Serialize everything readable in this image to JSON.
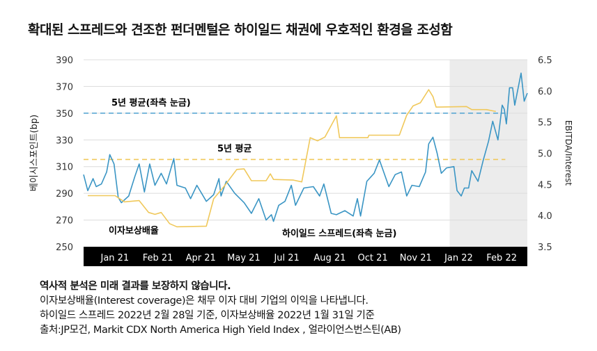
{
  "title": "확대된 스프레드와 견조한 펀더멘털은 하이일드 채권에 우호적인 환경을 조성함",
  "chart_data": {
    "type": "line",
    "ylabel_left": "베이시스포인트(bp)",
    "ylabel_right": "EBITDA/Interest",
    "ylim_left": [
      250,
      390
    ],
    "yticks_left": [
      250,
      270,
      290,
      310,
      330,
      350,
      370,
      390
    ],
    "ylim_right": [
      3.5,
      6.5
    ],
    "yticks_right": [
      "3.5",
      "4.0",
      "4.5",
      "5.0",
      "5.5",
      "6.0",
      "6.5"
    ],
    "xlim": [
      "2021-01-01",
      "2022-02-28"
    ],
    "xtick_labels": [
      "Jan 21",
      "Feb 21",
      "Apr 21",
      "May 21",
      "Jul 21",
      "Aug 21",
      "Oct 21",
      "Nov 21",
      "Jan 22",
      "Feb 22"
    ],
    "grid": "horizontal",
    "shaded_from": "2021-12-16",
    "shaded_color": "#ececec",
    "series": [
      {
        "name": "하이일드 스프레드(좌측 눈금)",
        "axis": "left",
        "color": "#3a95c4",
        "points": [
          [
            "2021-01-01",
            304
          ],
          [
            "2021-01-05",
            292
          ],
          [
            "2021-01-10",
            301
          ],
          [
            "2021-01-13",
            295
          ],
          [
            "2021-01-18",
            297
          ],
          [
            "2021-01-23",
            306
          ],
          [
            "2021-01-26",
            319
          ],
          [
            "2021-01-30",
            312
          ],
          [
            "2021-02-03",
            287
          ],
          [
            "2021-02-06",
            283
          ],
          [
            "2021-02-13",
            288
          ],
          [
            "2021-02-19",
            303
          ],
          [
            "2021-02-23",
            312
          ],
          [
            "2021-02-28",
            291
          ],
          [
            "2021-03-05",
            312
          ],
          [
            "2021-03-10",
            296
          ],
          [
            "2021-03-16",
            305
          ],
          [
            "2021-03-21",
            297
          ],
          [
            "2021-03-28",
            316
          ],
          [
            "2021-03-31",
            296
          ],
          [
            "2021-04-08",
            294
          ],
          [
            "2021-04-13",
            286
          ],
          [
            "2021-04-19",
            296
          ],
          [
            "2021-04-28",
            284
          ],
          [
            "2021-05-05",
            289
          ],
          [
            "2021-05-10",
            301
          ],
          [
            "2021-05-12",
            288
          ],
          [
            "2021-05-17",
            299
          ],
          [
            "2021-05-25",
            290
          ],
          [
            "2021-06-03",
            283
          ],
          [
            "2021-06-10",
            275
          ],
          [
            "2021-06-17",
            286
          ],
          [
            "2021-06-24",
            270
          ],
          [
            "2021-06-29",
            274
          ],
          [
            "2021-07-01",
            269
          ],
          [
            "2021-07-06",
            281
          ],
          [
            "2021-07-12",
            284
          ],
          [
            "2021-07-18",
            296
          ],
          [
            "2021-07-22",
            281
          ],
          [
            "2021-07-30",
            294
          ],
          [
            "2021-08-08",
            295
          ],
          [
            "2021-08-14",
            288
          ],
          [
            "2021-08-18",
            297
          ],
          [
            "2021-08-25",
            275
          ],
          [
            "2021-08-30",
            274
          ],
          [
            "2021-09-07",
            277
          ],
          [
            "2021-09-15",
            273
          ],
          [
            "2021-09-19",
            286
          ],
          [
            "2021-09-22",
            273
          ],
          [
            "2021-09-28",
            299
          ],
          [
            "2021-10-05",
            305
          ],
          [
            "2021-10-10",
            315
          ],
          [
            "2021-10-19",
            295
          ],
          [
            "2021-10-25",
            304
          ],
          [
            "2021-10-31",
            306
          ],
          [
            "2021-11-05",
            288
          ],
          [
            "2021-11-10",
            296
          ],
          [
            "2021-11-17",
            295
          ],
          [
            "2021-11-23",
            306
          ],
          [
            "2021-11-26",
            327
          ],
          [
            "2021-11-30",
            332
          ],
          [
            "2021-12-04",
            320
          ],
          [
            "2021-12-08",
            305
          ],
          [
            "2021-12-13",
            309
          ],
          [
            "2021-12-20",
            310
          ],
          [
            "2021-12-23",
            292
          ],
          [
            "2021-12-27",
            288
          ],
          [
            "2021-12-30",
            294
          ],
          [
            "2022-01-03",
            294
          ],
          [
            "2022-01-06",
            307
          ],
          [
            "2022-01-12",
            299
          ],
          [
            "2022-01-17",
            315
          ],
          [
            "2022-01-22",
            329
          ],
          [
            "2022-01-26",
            344
          ],
          [
            "2022-01-31",
            330
          ],
          [
            "2022-02-04",
            356
          ],
          [
            "2022-02-06",
            353
          ],
          [
            "2022-02-08",
            342
          ],
          [
            "2022-02-11",
            369
          ],
          [
            "2022-02-14",
            369
          ],
          [
            "2022-02-16",
            356
          ],
          [
            "2022-02-22",
            380
          ],
          [
            "2022-02-25",
            359
          ],
          [
            "2022-02-28",
            365
          ]
        ]
      },
      {
        "name": "이자보상배율",
        "axis": "right",
        "color": "#f0c85a",
        "points": [
          [
            "2021-01-05",
            4.32
          ],
          [
            "2021-01-31",
            4.32
          ],
          [
            "2021-02-09",
            4.22
          ],
          [
            "2021-02-23",
            4.24
          ],
          [
            "2021-03-04",
            4.05
          ],
          [
            "2021-03-10",
            4.02
          ],
          [
            "2021-03-16",
            4.05
          ],
          [
            "2021-03-24",
            3.87
          ],
          [
            "2021-03-31",
            3.82
          ],
          [
            "2021-04-28",
            3.83
          ],
          [
            "2021-05-05",
            4.27
          ],
          [
            "2021-05-15",
            4.47
          ],
          [
            "2021-05-27",
            4.74
          ],
          [
            "2021-06-03",
            4.75
          ],
          [
            "2021-06-10",
            4.56
          ],
          [
            "2021-06-24",
            4.56
          ],
          [
            "2021-06-28",
            4.67
          ],
          [
            "2021-07-01",
            4.58
          ],
          [
            "2021-07-20",
            4.57
          ],
          [
            "2021-07-28",
            4.54
          ],
          [
            "2021-08-05",
            5.25
          ],
          [
            "2021-08-12",
            5.2
          ],
          [
            "2021-08-19",
            5.26
          ],
          [
            "2021-08-30",
            5.6
          ],
          [
            "2021-09-02",
            5.25
          ],
          [
            "2021-09-29",
            5.25
          ],
          [
            "2021-09-30",
            5.29
          ],
          [
            "2021-10-29",
            5.29
          ],
          [
            "2021-11-05",
            5.61
          ],
          [
            "2021-11-11",
            5.76
          ],
          [
            "2021-11-18",
            5.81
          ],
          [
            "2021-11-26",
            6.02
          ],
          [
            "2021-11-30",
            5.91
          ],
          [
            "2021-12-03",
            5.74
          ],
          [
            "2022-01-01",
            5.75
          ],
          [
            "2022-01-06",
            5.7
          ],
          [
            "2022-01-20",
            5.7
          ],
          [
            "2022-01-29",
            5.67
          ]
        ]
      }
    ],
    "reference_lines": [
      {
        "label": "5년 평균(좌측 눈금)",
        "axis": "left",
        "value": 350,
        "color": "#5aa7d3",
        "end": "2022-02-07"
      },
      {
        "label": "5년 평균",
        "axis": "right",
        "value": 4.9,
        "color": "#f0c85a",
        "end": "2022-02-07"
      }
    ],
    "annotations": {
      "coverage_label": "이자보상배율",
      "spread_label": "하이일드 스프레드(좌측 눈금)"
    }
  },
  "notes": {
    "disclaimer": "역사적 분석은 미래 결과를 보장하지 않습니다.",
    "definition": "이자보상배율(Interest coverage)은 채무 이자 대비 기업의 이익을 나타냅니다.",
    "as_of": "하이일드 스프레드 2022년 2월 28일 기준, 이자보상배율 2022년 1월 31일 기준",
    "source": "출처:JP모건, Markit CDX North America High Yield Index , 얼라이언스번스틴(AB)"
  }
}
